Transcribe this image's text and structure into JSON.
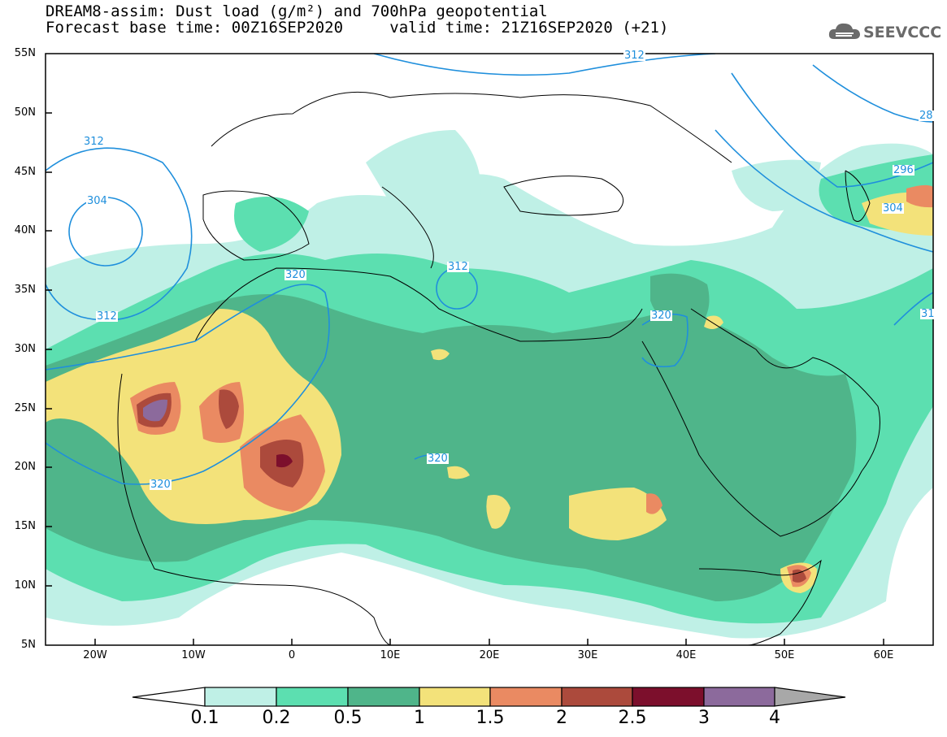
{
  "title": {
    "line1": "DREAM8-assim: Dust load (g/m²) and 700hPa geopotential",
    "base_time": "Forecast base time: 00Z16SEP2020",
    "valid_time": "valid time: 21Z16SEP2020 (+21)"
  },
  "logo": {
    "text": "SEEVCCC",
    "icon": "cloud-icon",
    "color": "#6a6a6a"
  },
  "axes": {
    "lon_labels": [
      "20W",
      "10W",
      "0",
      "10E",
      "20E",
      "30E",
      "40E",
      "50E",
      "60E"
    ],
    "lat_labels": [
      "55N",
      "50N",
      "45N",
      "40N",
      "35N",
      "30N",
      "25N",
      "20N",
      "15N",
      "10N",
      "5N"
    ],
    "lon_range": [
      -25,
      65
    ],
    "lat_range": [
      5,
      55
    ]
  },
  "colorbar": {
    "levels": [
      "0.1",
      "0.2",
      "0.5",
      "1",
      "1.5",
      "2",
      "2.5",
      "3",
      "4"
    ],
    "colors": [
      "#bff0e6",
      "#5cdfb0",
      "#4fb58a",
      "#f3e27a",
      "#ea8a62",
      "#ac4a3c",
      "#7c0f2c",
      "#8c6a9c",
      "#a8a8a8"
    ]
  },
  "contours": {
    "color": "#1f8fdc",
    "labels": [
      "312",
      "304",
      "312",
      "320",
      "312",
      "320",
      "320",
      "320",
      "296",
      "304",
      "28",
      "31"
    ]
  }
}
